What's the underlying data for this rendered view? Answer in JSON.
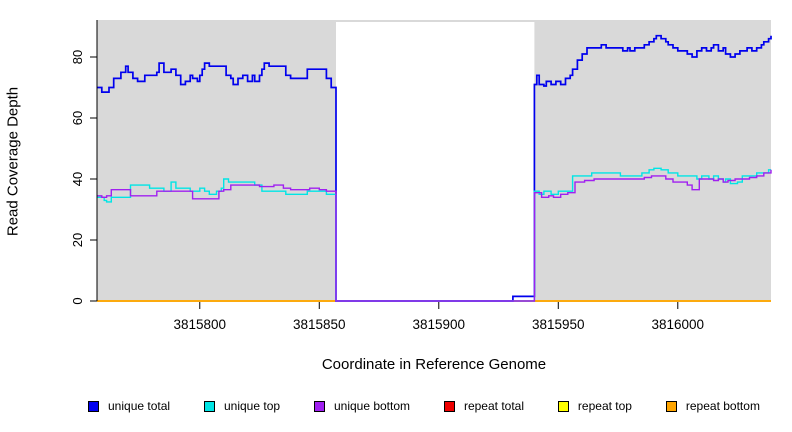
{
  "figure_title": "",
  "chart_data": {
    "type": "line",
    "subtype": "step",
    "title": "",
    "xlabel": "Coordinate in Reference Genome",
    "ylabel": "Read Coverage Depth",
    "xlim": [
      3815757,
      3816039
    ],
    "ylim": [
      0,
      92
    ],
    "x_ticks": [
      3815800,
      3815850,
      3815900,
      3815950,
      3816000
    ],
    "y_ticks": [
      0,
      20,
      40,
      60,
      80
    ],
    "panel_bg": "#D9D9D9",
    "page_bg": "#FFFFFF",
    "axis_color": "#000000",
    "grid": false,
    "legend_position": "bottom",
    "no_data_region": {
      "start": 3815857,
      "end": 3815940,
      "fill": "#FFFFFF"
    },
    "draw_order": [
      3,
      4,
      5,
      0,
      1,
      2
    ],
    "series": [
      {
        "name": "unique total",
        "color": "#0000EE",
        "width": 1.7,
        "points": [
          [
            3815757,
            70
          ],
          [
            3815759,
            68.5
          ],
          [
            3815762,
            70
          ],
          [
            3815764,
            73
          ],
          [
            3815767,
            75
          ],
          [
            3815769,
            77
          ],
          [
            3815770,
            75
          ],
          [
            3815772,
            73
          ],
          [
            3815774,
            72
          ],
          [
            3815777,
            74
          ],
          [
            3815782,
            75
          ],
          [
            3815783,
            78
          ],
          [
            3815785,
            75
          ],
          [
            3815788,
            76
          ],
          [
            3815790,
            74
          ],
          [
            3815792,
            71
          ],
          [
            3815794,
            72
          ],
          [
            3815796,
            74
          ],
          [
            3815797,
            73
          ],
          [
            3815799,
            72
          ],
          [
            3815800,
            74
          ],
          [
            3815801,
            76
          ],
          [
            3815802,
            78
          ],
          [
            3815804,
            77
          ],
          [
            3815809,
            77
          ],
          [
            3815811,
            74
          ],
          [
            3815813,
            73
          ],
          [
            3815814,
            71
          ],
          [
            3815816,
            73
          ],
          [
            3815818,
            74
          ],
          [
            3815820,
            72
          ],
          [
            3815822,
            74
          ],
          [
            3815823,
            72
          ],
          [
            3815825,
            74
          ],
          [
            3815826,
            76
          ],
          [
            3815827,
            78
          ],
          [
            3815829,
            77
          ],
          [
            3815833,
            77
          ],
          [
            3815836,
            74
          ],
          [
            3815838,
            73
          ],
          [
            3815843,
            73
          ],
          [
            3815845,
            76
          ],
          [
            3815851,
            76
          ],
          [
            3815853,
            73
          ],
          [
            3815855,
            70
          ],
          [
            3815857,
            0
          ],
          [
            3815931,
            1.5
          ],
          [
            3815940,
            71
          ],
          [
            3815941,
            74
          ],
          [
            3815942,
            71
          ],
          [
            3815944,
            70.5
          ],
          [
            3815945,
            72
          ],
          [
            3815947,
            71
          ],
          [
            3815949,
            72
          ],
          [
            3815951,
            71
          ],
          [
            3815953,
            73
          ],
          [
            3815955,
            74
          ],
          [
            3815956,
            76
          ],
          [
            3815958,
            79
          ],
          [
            3815960,
            81
          ],
          [
            3815962,
            83
          ],
          [
            3815966,
            83
          ],
          [
            3815968,
            84
          ],
          [
            3815970,
            83
          ],
          [
            3815976,
            83
          ],
          [
            3815977,
            82
          ],
          [
            3815979,
            83
          ],
          [
            3815980,
            82
          ],
          [
            3815982,
            83
          ],
          [
            3815986,
            84
          ],
          [
            3815988,
            85
          ],
          [
            3815990,
            86
          ],
          [
            3815991,
            87
          ],
          [
            3815993,
            86
          ],
          [
            3815995,
            85
          ],
          [
            3815996,
            84
          ],
          [
            3815998,
            83
          ],
          [
            3816000,
            82
          ],
          [
            3816004,
            81
          ],
          [
            3816006,
            80
          ],
          [
            3816008,
            82
          ],
          [
            3816010,
            83
          ],
          [
            3816012,
            82
          ],
          [
            3816014,
            83
          ],
          [
            3816015,
            84
          ],
          [
            3816017,
            82
          ],
          [
            3816019,
            83
          ],
          [
            3816020,
            81
          ],
          [
            3816022,
            80
          ],
          [
            3816024,
            81
          ],
          [
            3816026,
            82
          ],
          [
            3816029,
            83
          ],
          [
            3816031,
            82
          ],
          [
            3816033,
            83
          ],
          [
            3816035,
            84
          ],
          [
            3816036,
            85
          ],
          [
            3816038,
            86
          ],
          [
            3816039,
            87
          ]
        ]
      },
      {
        "name": "unique top",
        "color": "#00E5E5",
        "width": 1.4,
        "points": [
          [
            3815757,
            34
          ],
          [
            3815760,
            33
          ],
          [
            3815761,
            32.5
          ],
          [
            3815763,
            34
          ],
          [
            3815768,
            34
          ],
          [
            3815771,
            38
          ],
          [
            3815776,
            38
          ],
          [
            3815779,
            37
          ],
          [
            3815782,
            37
          ],
          [
            3815785,
            36
          ],
          [
            3815788,
            39
          ],
          [
            3815790,
            37
          ],
          [
            3815793,
            37
          ],
          [
            3815796,
            36
          ],
          [
            3815800,
            37
          ],
          [
            3815802,
            36
          ],
          [
            3815804,
            35
          ],
          [
            3815807,
            36
          ],
          [
            3815809,
            37
          ],
          [
            3815810,
            40
          ],
          [
            3815812,
            39
          ],
          [
            3815820,
            39
          ],
          [
            3815823,
            38
          ],
          [
            3815826,
            36
          ],
          [
            3815833,
            36
          ],
          [
            3815836,
            35
          ],
          [
            3815840,
            35
          ],
          [
            3815845,
            36
          ],
          [
            3815849,
            36
          ],
          [
            3815853,
            35
          ],
          [
            3815857,
            0
          ],
          [
            3815940,
            36
          ],
          [
            3815942,
            35
          ],
          [
            3815944,
            36
          ],
          [
            3815947,
            35
          ],
          [
            3815950,
            36
          ],
          [
            3815953,
            36
          ],
          [
            3815956,
            41
          ],
          [
            3815964,
            42
          ],
          [
            3815972,
            42
          ],
          [
            3815976,
            41
          ],
          [
            3815985,
            42
          ],
          [
            3815988,
            43
          ],
          [
            3815990,
            43.5
          ],
          [
            3815993,
            43
          ],
          [
            3815996,
            42
          ],
          [
            3816000,
            41
          ],
          [
            3816006,
            41
          ],
          [
            3816008,
            40
          ],
          [
            3816010,
            41
          ],
          [
            3816013,
            40
          ],
          [
            3816015,
            41
          ],
          [
            3816017,
            40
          ],
          [
            3816019,
            39
          ],
          [
            3816020,
            40
          ],
          [
            3816022,
            38.5
          ],
          [
            3816025,
            39
          ],
          [
            3816027,
            41
          ],
          [
            3816031,
            41
          ],
          [
            3816033,
            42
          ],
          [
            3816036,
            42
          ],
          [
            3816038,
            43
          ],
          [
            3816039,
            43
          ]
        ]
      },
      {
        "name": "unique bottom",
        "color": "#A020F0",
        "width": 1.4,
        "points": [
          [
            3815757,
            34.5
          ],
          [
            3815759,
            34
          ],
          [
            3815761,
            34.5
          ],
          [
            3815763,
            36.5
          ],
          [
            3815768,
            36.5
          ],
          [
            3815771,
            34.5
          ],
          [
            3815780,
            34.5
          ],
          [
            3815782,
            36
          ],
          [
            3815794,
            36
          ],
          [
            3815797,
            33.5
          ],
          [
            3815805,
            33.5
          ],
          [
            3815808,
            36
          ],
          [
            3815810,
            36.5
          ],
          [
            3815813,
            38
          ],
          [
            3815821,
            38
          ],
          [
            3815825,
            37.5
          ],
          [
            3815828,
            37.5
          ],
          [
            3815831,
            38
          ],
          [
            3815835,
            37
          ],
          [
            3815838,
            36.5
          ],
          [
            3815842,
            36.5
          ],
          [
            3815846,
            37
          ],
          [
            3815850,
            36.5
          ],
          [
            3815853,
            36
          ],
          [
            3815857,
            0
          ],
          [
            3815940,
            35.5
          ],
          [
            3815943,
            34
          ],
          [
            3815946,
            34.5
          ],
          [
            3815948,
            34
          ],
          [
            3815951,
            35
          ],
          [
            3815954,
            35.5
          ],
          [
            3815957,
            39
          ],
          [
            3815961,
            39.5
          ],
          [
            3815965,
            40
          ],
          [
            3815979,
            40
          ],
          [
            3815983,
            40
          ],
          [
            3815986,
            40.5
          ],
          [
            3815989,
            41
          ],
          [
            3815995,
            40
          ],
          [
            3815998,
            39
          ],
          [
            3816004,
            38
          ],
          [
            3816006,
            36.5
          ],
          [
            3816009,
            40
          ],
          [
            3816012,
            40
          ],
          [
            3816015,
            39.5
          ],
          [
            3816017,
            40
          ],
          [
            3816019,
            39
          ],
          [
            3816021,
            39.5
          ],
          [
            3816024,
            40
          ],
          [
            3816027,
            40
          ],
          [
            3816030,
            40.5
          ],
          [
            3816033,
            41
          ],
          [
            3816036,
            42
          ],
          [
            3816039,
            43
          ]
        ]
      },
      {
        "name": "repeat total",
        "color": "#EE0000",
        "width": 1.4,
        "points": [
          [
            3815757,
            0
          ],
          [
            3816039,
            0
          ]
        ]
      },
      {
        "name": "repeat top",
        "color": "#FFFF00",
        "width": 1.4,
        "points": [
          [
            3815757,
            0
          ],
          [
            3816039,
            0
          ]
        ]
      },
      {
        "name": "repeat bottom",
        "color": "#FFA500",
        "width": 1.4,
        "points": [
          [
            3815757,
            0
          ],
          [
            3816039,
            0
          ]
        ]
      }
    ]
  }
}
